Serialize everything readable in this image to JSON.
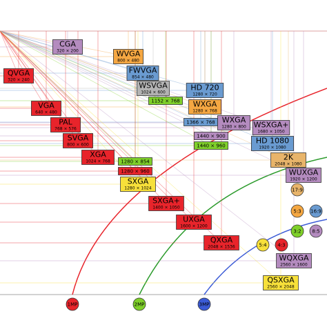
{
  "nodes": [
    {
      "label": "CGA",
      "resolution": "320 × 200",
      "color": "#b48bbf"
    },
    {
      "label": "QVGA",
      "resolution": "320 × 240",
      "color": "#e8242b"
    },
    {
      "label": "WVGA",
      "resolution": "800 × 480",
      "color": "#f5a742"
    },
    {
      "label": "FWVGA",
      "resolution": "854 × 480",
      "color": "#6a9bd1"
    },
    {
      "label": "WSVGA",
      "resolution": "1024 × 600",
      "color": "#b3b3b3"
    },
    {
      "resolution": "1152 × 768",
      "color": "#7fd02a"
    },
    {
      "label": "HD 720",
      "resolution": "1280 × 720",
      "color": "#6a9bd1"
    },
    {
      "label": "WXGA",
      "resolution": "1280 × 768",
      "color": "#f5a742"
    },
    {
      "label": "VGA",
      "resolution": "640 × 480",
      "color": "#e8242b"
    },
    {
      "label": "PAL",
      "resolution": "768 × 576",
      "color": "#e8242b"
    },
    {
      "resolution": "1366 × 768",
      "color": "#6a9bd1"
    },
    {
      "label": "WXGA",
      "resolution": "1280 × 800",
      "color": "#b48bbf"
    },
    {
      "label": "WSXGA+",
      "resolution": "1680 × 1050",
      "color": "#b48bbf"
    },
    {
      "resolution": "1440 × 900",
      "color": "#b48bbf"
    },
    {
      "label": "SVGA",
      "resolution": "800 × 600",
      "color": "#e8242b"
    },
    {
      "resolution": "1440 × 960",
      "color": "#7fd02a"
    },
    {
      "label": "HD 1080",
      "resolution": "1920 × 1080",
      "color": "#6a9bd1"
    },
    {
      "label": "XGA",
      "resolution": "1024 × 768",
      "color": "#e8242b"
    },
    {
      "resolution": "1280 × 854",
      "color": "#7fd02a"
    },
    {
      "label": "2K",
      "resolution": "2048 × 1080",
      "color": "#e8b46a"
    },
    {
      "resolution": "1280 × 960",
      "color": "#e8242b"
    },
    {
      "label": "WUXGA",
      "resolution": "1920 × 1200",
      "color": "#b48bbf"
    },
    {
      "label": "SXGA",
      "resolution": "1280 × 1024",
      "color": "#f7e03a"
    },
    {
      "label": "SXGA+",
      "resolution": "1400 × 1050",
      "color": "#e8242b"
    },
    {
      "label": "UXGA",
      "resolution": "1600 × 1200",
      "color": "#e8242b"
    },
    {
      "label": "QXGA",
      "resolution": "2048 × 1536",
      "color": "#e8242b"
    },
    {
      "label": "WQXGA",
      "resolution": "2560 × 1600",
      "color": "#b48bbf"
    },
    {
      "label": "QSXGA",
      "resolution": "2560 × 2048",
      "color": "#f7e03a"
    }
  ],
  "aspects": [
    {
      "label": "17:9",
      "color": "#e8b46a"
    },
    {
      "label": "5:3",
      "color": "#f5a742"
    },
    {
      "label": "16:9",
      "color": "#6a9bd1"
    },
    {
      "label": "3:2",
      "color": "#7fd02a"
    },
    {
      "label": "8:5",
      "color": "#b48bbf"
    },
    {
      "label": "5:4",
      "color": "#f7e03a"
    },
    {
      "label": "4:3",
      "color": "#e8242b"
    }
  ],
  "megapixels": [
    {
      "label": "1MP",
      "color": "#e8242b"
    },
    {
      "label": "2MP",
      "color": "#7fd02a"
    },
    {
      "label": "3MP",
      "color": "#3b5bd6"
    }
  ]
}
